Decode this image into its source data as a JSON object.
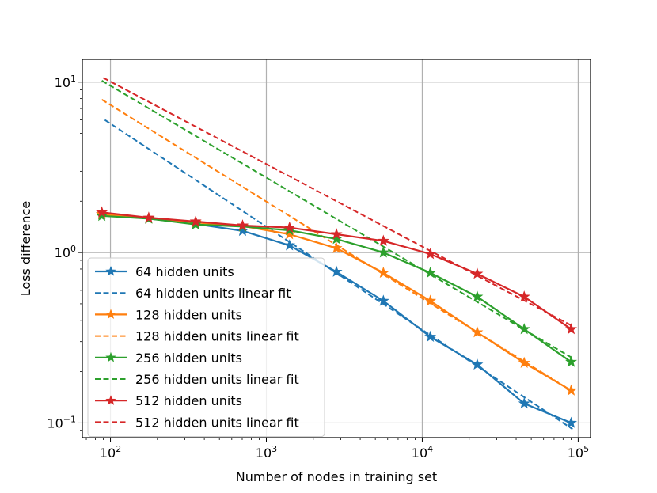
{
  "chart_data": {
    "type": "line",
    "xscale": "log",
    "yscale": "log",
    "xlabel": "Number of nodes in training set",
    "ylabel": "Loss difference",
    "xlim": [
      66,
      120000
    ],
    "ylim": [
      0.082,
      13.6
    ],
    "grid": true,
    "legend_position": "lower-left",
    "x_ticks": [
      {
        "value": 100,
        "base": "10",
        "exp": "2"
      },
      {
        "value": 1000,
        "base": "10",
        "exp": "3"
      },
      {
        "value": 10000,
        "base": "10",
        "exp": "4"
      },
      {
        "value": 100000,
        "base": "10",
        "exp": "5"
      }
    ],
    "y_ticks": [
      {
        "value": 0.1,
        "base": "10",
        "exp": "−1"
      },
      {
        "value": 1,
        "base": "10",
        "exp": "0"
      },
      {
        "value": 10,
        "base": "10",
        "exp": "1"
      }
    ],
    "x": [
      88,
      176,
      352,
      704,
      1408,
      2816,
      5632,
      11264,
      22528,
      45056,
      90112
    ],
    "series": [
      {
        "name": "64 hidden units",
        "color": "#1f77b4",
        "style": "solid-star",
        "values": [
          1.68,
          1.58,
          1.47,
          1.34,
          1.1,
          0.77,
          0.52,
          0.32,
          0.22,
          0.13,
          0.1
        ]
      },
      {
        "name": "64 hidden units linear fit",
        "color": "#1f77b4",
        "style": "dashed",
        "fit_start": [
          92,
          6.0
        ],
        "fit_end": [
          92000,
          0.092
        ]
      },
      {
        "name": "128 hidden units",
        "color": "#ff7f0e",
        "style": "solid-star",
        "values": [
          1.68,
          1.58,
          1.5,
          1.43,
          1.28,
          1.06,
          0.76,
          0.52,
          0.34,
          0.225,
          0.155
        ]
      },
      {
        "name": "128 hidden units linear fit",
        "color": "#ff7f0e",
        "style": "dashed",
        "fit_start": [
          88,
          7.9
        ],
        "fit_end": [
          92000,
          0.153
        ]
      },
      {
        "name": "256 hidden units",
        "color": "#2ca02c",
        "style": "solid-star",
        "values": [
          1.64,
          1.58,
          1.46,
          1.42,
          1.35,
          1.2,
          1.0,
          0.76,
          0.55,
          0.355,
          0.228
        ]
      },
      {
        "name": "256 hidden units linear fit",
        "color": "#2ca02c",
        "style": "dashed",
        "fit_start": [
          88,
          10.2
        ],
        "fit_end": [
          92000,
          0.24
        ]
      },
      {
        "name": "512 hidden units",
        "color": "#d62728",
        "style": "solid-star",
        "values": [
          1.72,
          1.6,
          1.52,
          1.44,
          1.4,
          1.28,
          1.17,
          0.98,
          0.75,
          0.55,
          0.355
        ]
      },
      {
        "name": "512 hidden units linear fit",
        "color": "#d62728",
        "style": "dashed",
        "fit_start": [
          90,
          10.6
        ],
        "fit_end": [
          92000,
          0.37
        ]
      }
    ]
  }
}
